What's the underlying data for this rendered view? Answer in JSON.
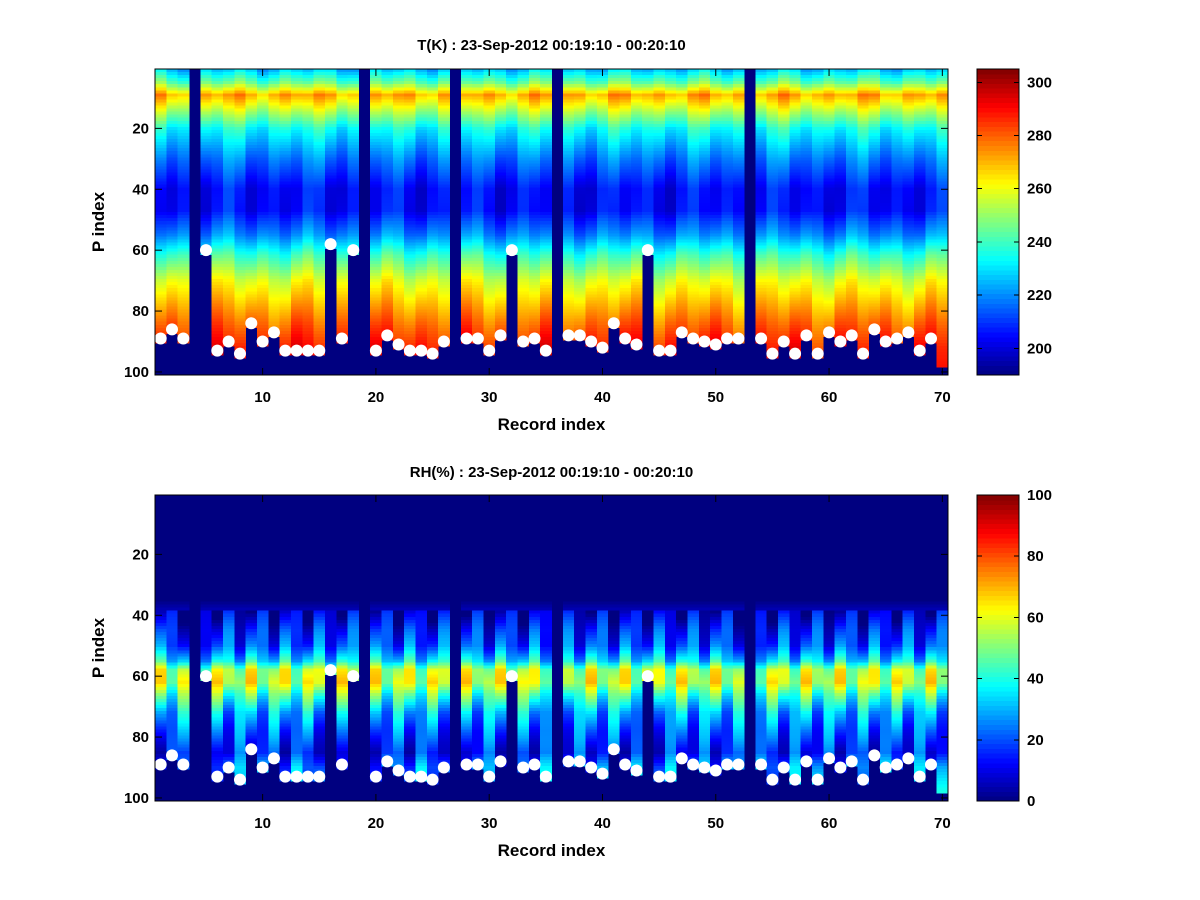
{
  "chart_data": [
    {
      "type": "heatmap",
      "title": "T(K) : 23-Sep-2012 00:19:10 - 00:20:10",
      "xlabel": "Record index",
      "ylabel": "P index",
      "xlim": [
        0.5,
        70.5
      ],
      "ylim": [
        0.5,
        101
      ],
      "xticks": [
        "10",
        "20",
        "30",
        "40",
        "50",
        "60",
        "70"
      ],
      "yticks": [
        "20",
        "40",
        "60",
        "80",
        "100"
      ],
      "clim": [
        190,
        305
      ],
      "colorbar_ticks": [
        "200",
        "220",
        "240",
        "260",
        "280",
        "300"
      ],
      "colormap": "jet",
      "missing_records": [
        4,
        19,
        27,
        36,
        53
      ],
      "mean_profile": {
        "p": [
          1,
          5,
          9,
          12,
          20,
          30,
          40,
          47,
          55,
          62,
          70,
          78,
          85,
          92,
          100
        ],
        "value": [
          228,
          245,
          272,
          262,
          235,
          218,
          205,
          205,
          220,
          240,
          258,
          270,
          280,
          288,
          292
        ]
      },
      "markers_p": [
        89,
        86,
        89,
        null,
        60,
        93,
        90,
        94,
        84,
        90,
        87,
        93,
        93,
        93,
        93,
        58,
        89,
        60,
        null,
        93,
        88,
        91,
        93,
        93,
        94,
        90,
        null,
        89,
        89,
        93,
        88,
        60,
        90,
        89,
        93,
        null,
        88,
        88,
        90,
        92,
        84,
        89,
        91,
        60,
        93,
        93,
        87,
        89,
        90,
        91,
        89,
        89,
        null,
        89,
        94,
        90,
        94,
        88,
        94,
        87,
        90,
        88,
        94,
        86,
        90,
        89,
        87,
        93,
        89,
        null
      ]
    },
    {
      "type": "heatmap",
      "title": "RH(%) : 23-Sep-2012 00:19:10 - 00:20:10",
      "xlabel": "Record index",
      "ylabel": "P index",
      "xlim": [
        0.5,
        70.5
      ],
      "ylim": [
        0.5,
        101
      ],
      "xticks": [
        "10",
        "20",
        "30",
        "40",
        "50",
        "60",
        "70"
      ],
      "yticks": [
        "20",
        "40",
        "60",
        "80",
        "100"
      ],
      "clim": [
        0,
        100
      ],
      "colorbar_ticks": [
        "0",
        "20",
        "40",
        "60",
        "80",
        "100"
      ],
      "colormap": "jet",
      "missing_records": [
        4,
        19,
        27,
        36,
        53
      ],
      "mean_profile": {
        "p": [
          1,
          35,
          40,
          45,
          50,
          55,
          58,
          62,
          66,
          72,
          78,
          85,
          90,
          100
        ],
        "value": [
          0,
          0,
          8,
          15,
          20,
          35,
          55,
          58,
          45,
          30,
          22,
          15,
          25,
          30
        ]
      },
      "markers_p": [
        89,
        86,
        89,
        null,
        60,
        93,
        90,
        94,
        84,
        90,
        87,
        93,
        93,
        93,
        93,
        58,
        89,
        60,
        null,
        93,
        88,
        91,
        93,
        93,
        94,
        90,
        null,
        89,
        89,
        93,
        88,
        60,
        90,
        89,
        93,
        null,
        88,
        88,
        90,
        92,
        84,
        89,
        91,
        60,
        93,
        93,
        87,
        89,
        90,
        91,
        89,
        89,
        null,
        89,
        94,
        90,
        94,
        88,
        94,
        87,
        90,
        88,
        94,
        86,
        90,
        89,
        87,
        93,
        89,
        null
      ]
    }
  ]
}
